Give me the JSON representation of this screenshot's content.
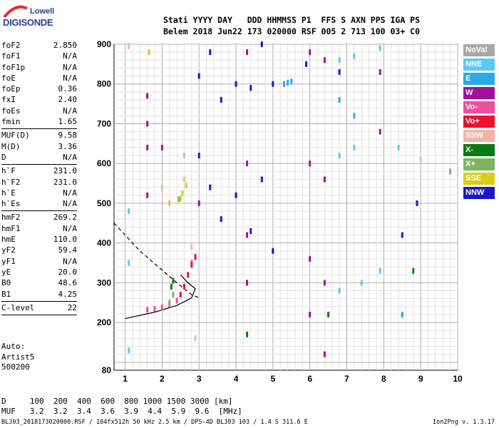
{
  "logo": {
    "line1": "Lowell",
    "line2": "DIGISONDE"
  },
  "header": {
    "line1": "Stati YYYY DAY   DDD HHMMSS P1  FFS S AXN PPS IGA PS",
    "line2": "Belem 2018 Jun22 173 020000 RSF 005 2 713 100 03+ C0"
  },
  "params_group1": [
    {
      "label": "foF2",
      "value": "2.850"
    },
    {
      "label": "foF1",
      "value": "N/A"
    },
    {
      "label": "foF1p",
      "value": "N/A"
    },
    {
      "label": "foE",
      "value": "N/A"
    },
    {
      "label": "foEp",
      "value": "0.36"
    },
    {
      "label": "fxI",
      "value": "2.40"
    },
    {
      "label": "foEs",
      "value": "N/A"
    },
    {
      "label": "fmin",
      "value": "1.65"
    }
  ],
  "params_group2": [
    {
      "label": "MUF(D)",
      "value": "9.58"
    },
    {
      "label": "M(D)",
      "value": "3.36"
    },
    {
      "label": "D",
      "value": "N/A"
    }
  ],
  "params_group3": [
    {
      "label": "h`F",
      "value": "231.0"
    },
    {
      "label": "h`F2",
      "value": "231.0"
    },
    {
      "label": "h`E",
      "value": "N/A"
    },
    {
      "label": "h`Es",
      "value": "N/A"
    }
  ],
  "params_group4": [
    {
      "label": "hmF2",
      "value": "269.2"
    },
    {
      "label": "hmF1",
      "value": "N/A"
    },
    {
      "label": "hmE",
      "value": "110.0"
    },
    {
      "label": "yF2",
      "value": "59.4"
    },
    {
      "label": "yF1",
      "value": "N/A"
    },
    {
      "label": "yE",
      "value": "20.0"
    },
    {
      "label": "B0",
      "value": "48.6"
    },
    {
      "label": "B1",
      "value": "4.25"
    }
  ],
  "params_group5": [
    {
      "label": "C-level",
      "value": "22"
    }
  ],
  "auto": {
    "line1": "Auto:",
    "line2": "Artist5",
    "line3": "500200"
  },
  "legend": [
    {
      "label": "NoVal",
      "color": "#a8a8a8"
    },
    {
      "label": "NNE",
      "color": "#5bc8f5"
    },
    {
      "label": "E",
      "color": "#29a9e6"
    },
    {
      "label": "W",
      "color": "#a0109e"
    },
    {
      "label": "Vo-",
      "color": "#f04ca0"
    },
    {
      "label": "Vo+",
      "color": "#ee1030"
    },
    {
      "label": "SSW",
      "color": "#f4b3a6"
    },
    {
      "label": "X-",
      "color": "#0a7a16"
    },
    {
      "label": "X+",
      "color": "#7db55e"
    },
    {
      "label": "SSE",
      "color": "#d7cf1c"
    },
    {
      "label": "NNW",
      "color": "#1c18c6"
    }
  ],
  "chart_data": {
    "type": "scatter",
    "x_ticks": [
      "1",
      "2",
      "3",
      "4",
      "5",
      "6",
      "7",
      "8",
      "9",
      "10"
    ],
    "y_ticks": [
      "80",
      "200",
      "300",
      "400",
      "500",
      "600",
      "700",
      "800",
      "900"
    ],
    "xlim": [
      1,
      10
    ],
    "ylim": [
      80,
      900
    ],
    "grid": true,
    "series": [
      {
        "name": "W",
        "color": "#a0109e",
        "x": [
          1.6,
          1.6,
          1.6,
          1.6,
          2.0,
          3.0,
          4.3,
          4.3,
          4.3,
          4.3,
          6.0,
          6.0,
          6.0,
          6.0,
          6.4,
          6.4,
          6.4,
          6.4,
          7.9,
          7.9
        ],
        "y": [
          770,
          700,
          640,
          520,
          640,
          500,
          880,
          600,
          420,
          300,
          880,
          600,
          360,
          220,
          860,
          560,
          300,
          120,
          830,
          680
        ]
      },
      {
        "name": "NNW",
        "color": "#1c18c6",
        "x": [
          2.6,
          3.0,
          3.0,
          3.3,
          3.3,
          3.6,
          3.6,
          4.0,
          4.0,
          4.4,
          4.4,
          4.7,
          4.7,
          5.0,
          5.0,
          5.9,
          6.8,
          8.5,
          8.9
        ],
        "y": [
          620,
          820,
          620,
          880,
          540,
          760,
          460,
          800,
          520,
          790,
          430,
          900,
          560,
          800,
          380,
          850,
          830,
          420,
          500
        ]
      },
      {
        "name": "NNE",
        "color": "#5bc8f5",
        "x": [
          1.1,
          1.1,
          1.1,
          6.8,
          6.8,
          6.8,
          7.2,
          7.2,
          7.4,
          7.9,
          7.9,
          8.4
        ],
        "y": [
          480,
          350,
          130,
          860,
          620,
          280,
          870,
          640,
          300,
          890,
          330,
          640
        ]
      },
      {
        "name": "E",
        "color": "#29a9e6",
        "x": [
          5.3,
          5.4,
          5.5,
          6.8,
          7.2,
          8.5
        ],
        "y": [
          800,
          803,
          806,
          760,
          720,
          220
        ]
      },
      {
        "name": "Vo-",
        "color": "#f04ca0",
        "x": [
          1.6,
          1.8,
          2.0,
          2.2,
          2.4,
          2.6,
          2.8
        ],
        "y": [
          232,
          234,
          238,
          245,
          255,
          290,
          350
        ]
      },
      {
        "name": "Vo+",
        "color": "#ee1030",
        "x": [
          2.5,
          2.6,
          2.7,
          2.8,
          2.9
        ],
        "y": [
          270,
          290,
          320,
          345,
          365
        ]
      },
      {
        "name": "SSW",
        "color": "#f4b3a6",
        "x": [
          1.1,
          2.6,
          2.6,
          2.8,
          2.0,
          2.9,
          9.0
        ],
        "y": [
          895,
          620,
          560,
          390,
          540,
          160,
          610
        ]
      },
      {
        "name": "X-",
        "color": "#0a7a16",
        "x": [
          2.25,
          2.3,
          6.5,
          8.8,
          4.3
        ],
        "y": [
          290,
          305,
          220,
          330,
          170
        ]
      },
      {
        "name": "X+",
        "color": "#7db55e",
        "x": [
          2.2,
          2.3,
          2.45,
          9.8
        ],
        "y": [
          250,
          270,
          510,
          580
        ]
      },
      {
        "name": "SSE",
        "color": "#d7cf1c",
        "x": [
          1.65,
          2.2,
          2.5,
          2.55,
          2.65
        ],
        "y": [
          880,
          500,
          512,
          525,
          545
        ]
      }
    ]
  },
  "footer": {
    "line1": "D     100  200  400  600  800 1000 1500 3000 [km]",
    "line2": "MUF   3.2  3.2  3.4  3.6  3.9  4.4  5.9  9.6  [MHz]"
  },
  "bottom_line": "BLJ03_2018173020000.RSF / 184fx512h 50 kHz 2.5 km / DPS-4D BLJ03 103 / 1.4 S 311.6 E",
  "version": "Ion2Png v. 1.3.17"
}
